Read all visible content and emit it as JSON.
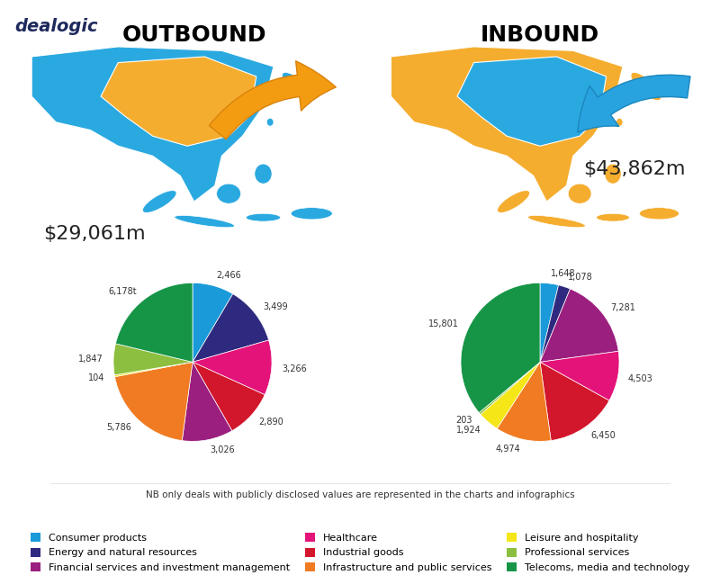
{
  "source": "dealogic",
  "note": "NB only deals with publicly disclosed values are represented in the charts and infographics",
  "chart_data": [
    {
      "type": "pie",
      "title": "OUTBOUND",
      "annotations": [
        "$29,061m"
      ],
      "categories": [
        "Consumer products",
        "Energy and natural resources",
        "Healthcare",
        "Industrial goods",
        "Financial services and investment management",
        "Infrastructure and public services",
        "Leisure and hospitality",
        "Professional services",
        "Telecoms, media and technology"
      ],
      "values": [
        2466,
        3499,
        3266,
        2890,
        3026,
        5786,
        104,
        1847,
        6178
      ],
      "value_labels": [
        "2,466",
        "3,499",
        "3,266",
        "2,890",
        "3,026",
        "5,786",
        "104",
        "1,847",
        "6,178t"
      ],
      "colors": [
        "#1a9ad9",
        "#2e2a7f",
        "#e3137a",
        "#d2162b",
        "#9b1f7e",
        "#f07b22",
        "#f5e617",
        "#8cbf3f",
        "#169547"
      ],
      "data_labels": true
    },
    {
      "type": "pie",
      "title": "INBOUND",
      "annotations": [
        "$43,862m"
      ],
      "categories": [
        "Consumer products",
        "Energy and natural resources",
        "Financial services and investment management",
        "Healthcare",
        "Industrial goods",
        "Infrastructure and public services",
        "Leisure and hospitality",
        "Professional services",
        "Telecoms, media and technology"
      ],
      "values": [
        1648,
        1078,
        7281,
        4503,
        6450,
        4974,
        1924,
        203,
        15801
      ],
      "value_labels": [
        "1,648",
        "1,078",
        "7,281",
        "4,503",
        "6,450",
        "4,974",
        "1,924",
        "203",
        "15,801"
      ],
      "colors": [
        "#1a9ad9",
        "#2e2a7f",
        "#9b1f7e",
        "#e3137a",
        "#d2162b",
        "#f07b22",
        "#f5e617",
        "#8cbf3f",
        "#169547"
      ],
      "data_labels": true,
      "legend": "lower center"
    }
  ]
}
